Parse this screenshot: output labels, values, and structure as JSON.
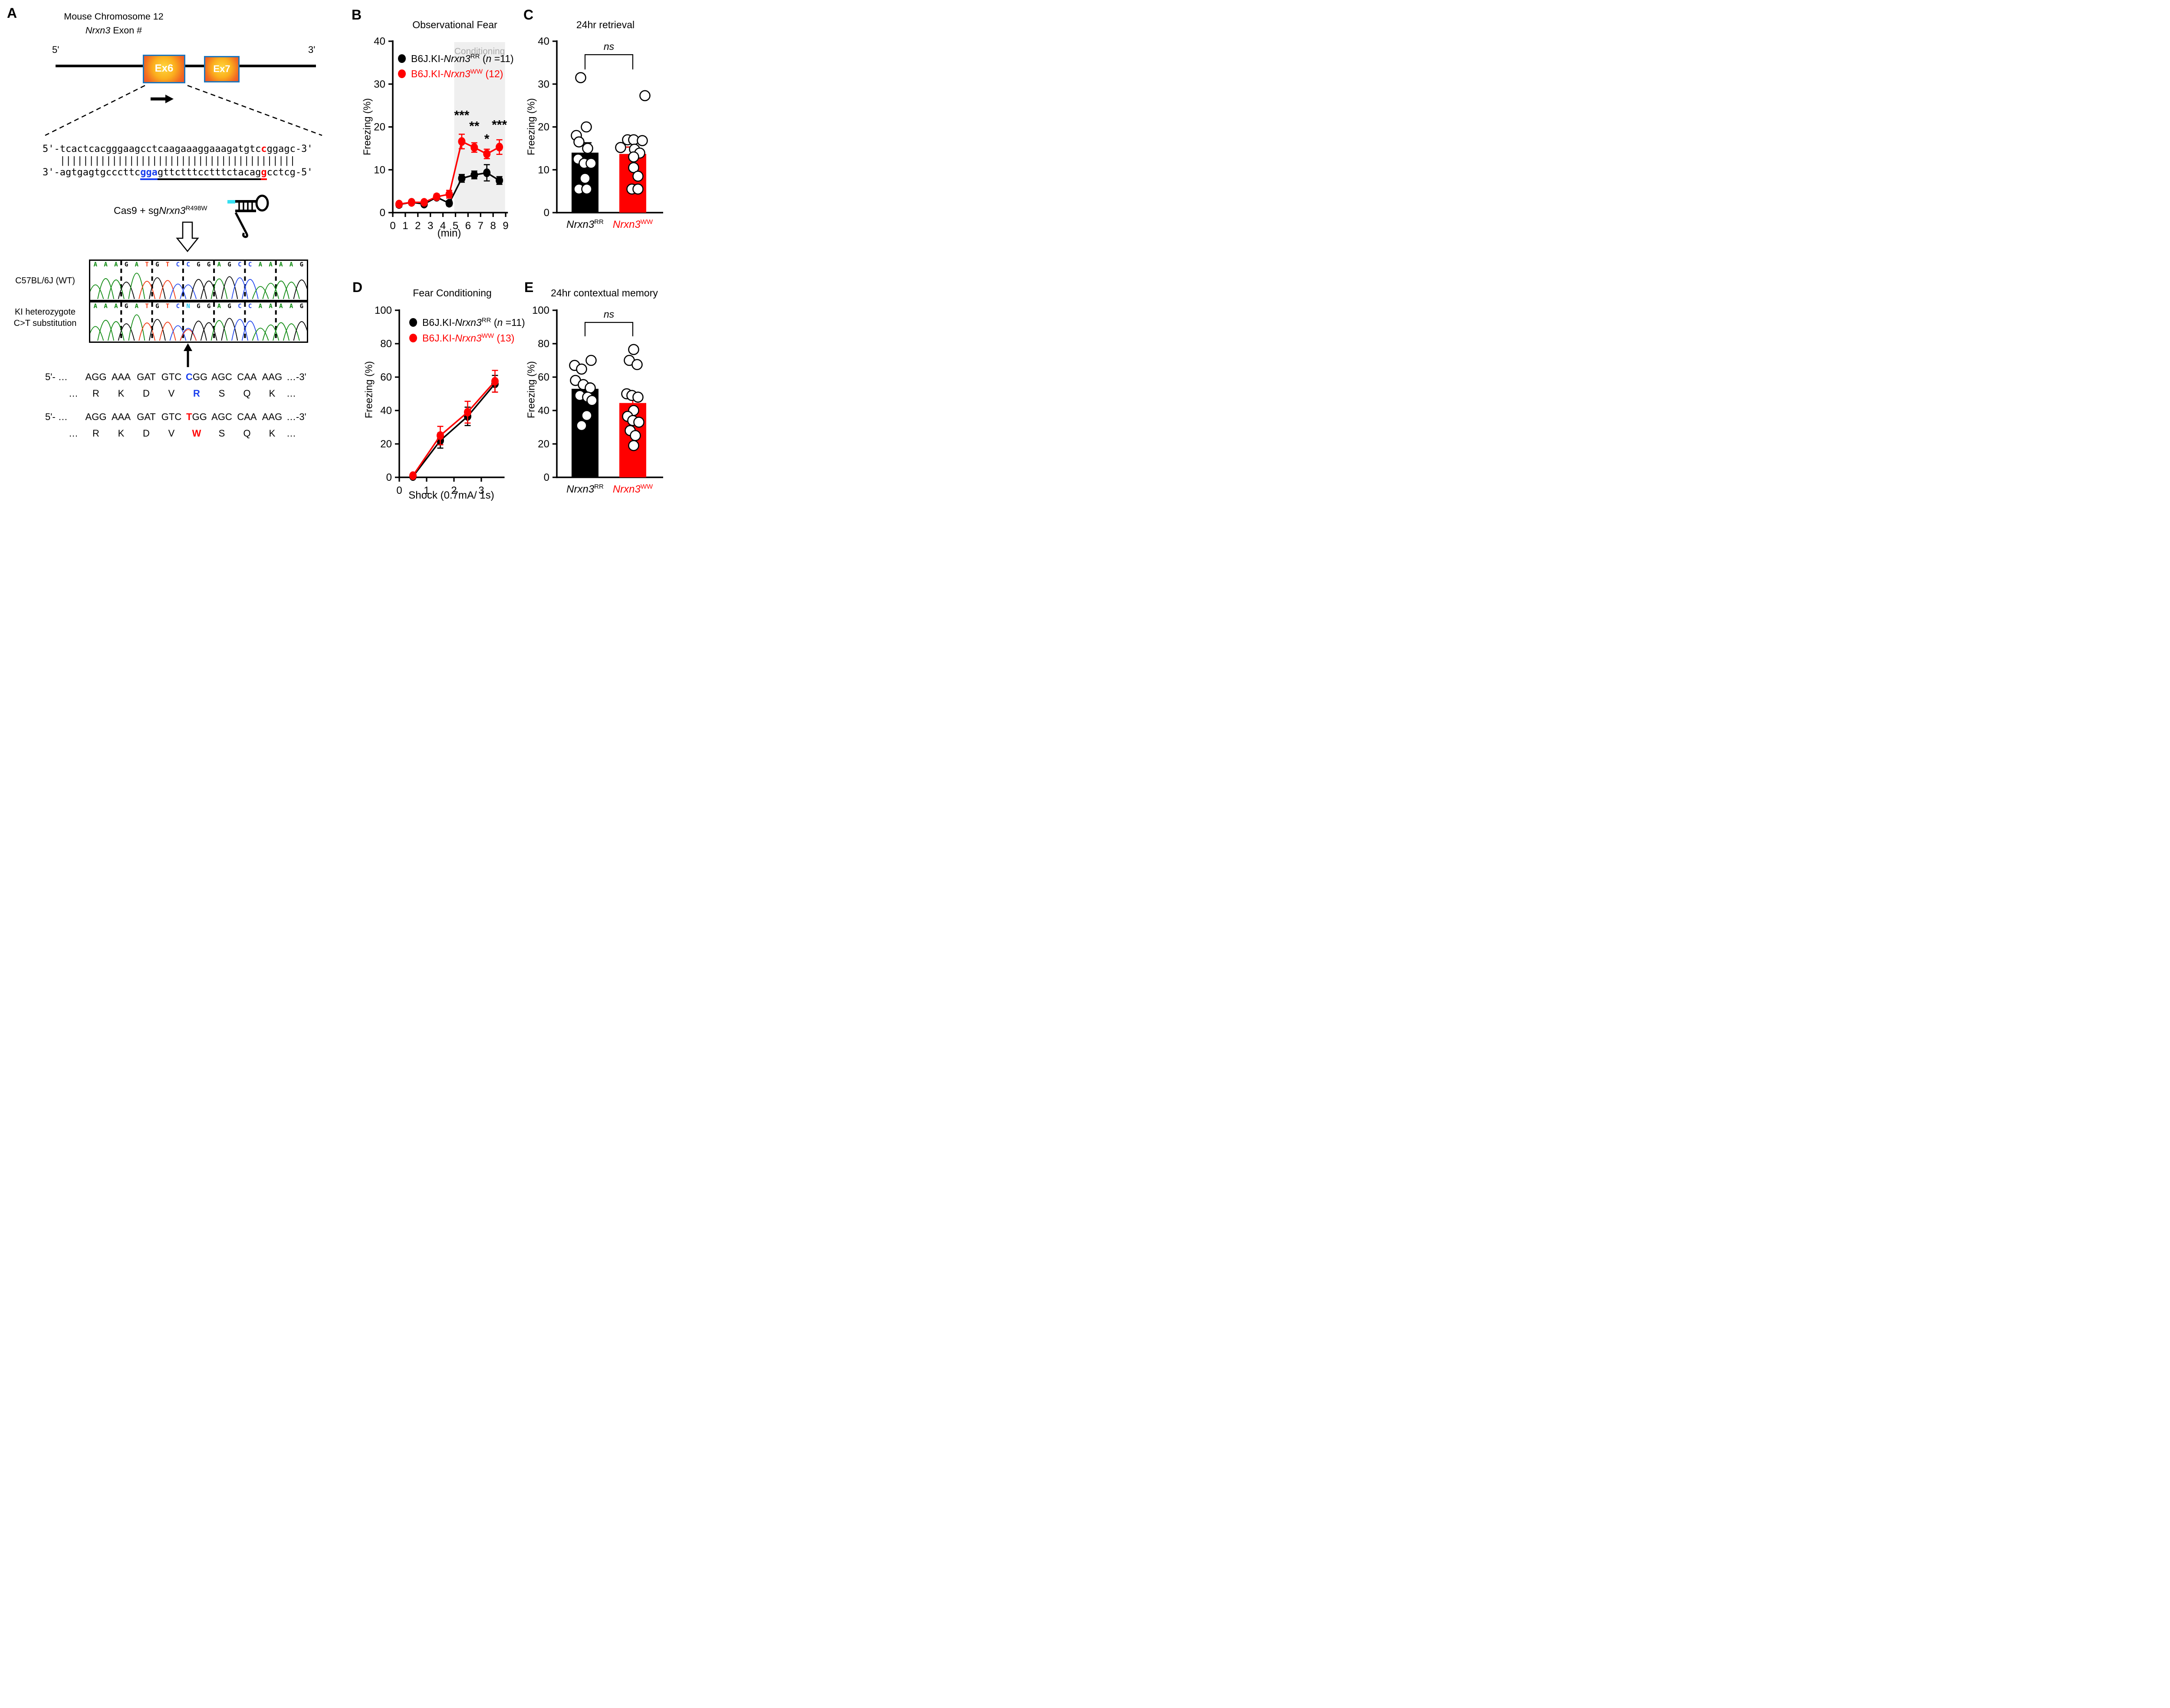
{
  "colors": {
    "red": "#FF0000",
    "black": "#000000",
    "blue": "#1A3FEE",
    "exon_border": "#1B75BC",
    "shade": "#efefef",
    "gray_text": "#ababab"
  },
  "panelA": {
    "label": "A",
    "title_line1": "Mouse Chromosome 12",
    "title_gene": "Nrxn3",
    "title_rest": " Exon #",
    "five_prime": "5'",
    "three_prime": "3'",
    "exon6": "Ex6",
    "exon7": "Ex7",
    "seq": {
      "top_prefix": "5'-",
      "top_a": "tcactcacgggaagcctcaagaaaggaaagatgtc",
      "top_mut": "c",
      "top_b": "ggagc",
      "top_suffix": "-3'",
      "pipes": "   |||||||||||||||||||||||||||||||||||||||||",
      "bot_prefix": "3'-",
      "bot_a": "agtgagtgcccttc",
      "bot_pam": "gga",
      "bot_b": "gttctttcctttctacag",
      "bot_mut": "g",
      "bot_c": "cctcg",
      "bot_suffix": "-5'"
    },
    "cas9": {
      "pre": "Cas9 + sg",
      "gene": "Nrxn3",
      "sup": "R498W"
    },
    "chromatogram": {
      "label_wt": "C57BL/6J (WT)",
      "label_ki1": "KI heterozygote",
      "label_ki2": "C>T substitution",
      "wt_bases": "AAAGATGTCCGGAGCCAAAAG",
      "ki_bases": "AAAGATGTCNGGAGCCAAAAG",
      "base_colors": {
        "A": "#0E8A10",
        "G": "#000000",
        "T": "#F23A12",
        "C": "#2348EE",
        "N": "#22C8F5"
      }
    },
    "codon_blocks": [
      {
        "prefix": "5'- …",
        "suffix": "…-3'",
        "res_pre": "…",
        "res_suf": "…",
        "codons": [
          "AGG",
          "AAA",
          "GAT",
          "GTC",
          "CGG",
          "AGC",
          "CAA",
          "AAG"
        ],
        "mut_codon": 4,
        "mut_char": 0,
        "color": "#1A3FEE",
        "residues": [
          "R",
          "K",
          "D",
          "V",
          "R",
          "S",
          "Q",
          "K"
        ],
        "mut_res": 4
      },
      {
        "prefix": "5'- …",
        "suffix": "…-3'",
        "res_pre": "…",
        "res_suf": "…",
        "codons": [
          "AGG",
          "AAA",
          "GAT",
          "GTC",
          "TGG",
          "AGC",
          "CAA",
          "AAG"
        ],
        "mut_codon": 4,
        "mut_char": 0,
        "color": "#FF0000",
        "residues": [
          "R",
          "K",
          "D",
          "V",
          "W",
          "S",
          "Q",
          "K"
        ],
        "mut_res": 4
      }
    ]
  },
  "chart_data": [
    {
      "id": "observational_fear",
      "panel": "B",
      "type": "line",
      "title": "Observational Fear",
      "xlabel": "(min)",
      "ylabel": "Freezing (%)",
      "x": [
        0.5,
        1.5,
        2.5,
        3.5,
        4.5,
        5.5,
        6.5,
        7.5,
        8.5
      ],
      "x_ticks": [
        0,
        1,
        2,
        3,
        4,
        5,
        6,
        7,
        8,
        9
      ],
      "y_ticks": [
        0,
        10,
        20,
        30,
        40
      ],
      "ylim": [
        0,
        40
      ],
      "shade": {
        "x0": 4.9,
        "x1": 8.95,
        "label": "Conditioning"
      },
      "series": [
        {
          "label_pre": "B6J.KI-",
          "gene": "Nrxn3",
          "sup": "RR",
          "tail_pre": " (",
          "tail_n": "n",
          "tail_post": " =11)",
          "color": "#000000",
          "values": [
            1.9,
            2.4,
            2.0,
            3.6,
            2.2,
            8.0,
            8.8,
            9.3,
            7.5
          ],
          "errors": [
            0.6,
            0.5,
            0.5,
            0.5,
            0.6,
            0.9,
            0.9,
            1.9,
            0.9
          ]
        },
        {
          "label_pre": "B6J.KI-",
          "gene": "Nrxn3",
          "sup": "WW",
          "tail_pre": " (12)",
          "tail_n": "",
          "tail_post": "",
          "color": "#FF0000",
          "values": [
            2.0,
            2.4,
            2.4,
            3.7,
            4.3,
            16.6,
            15.2,
            13.7,
            15.3
          ],
          "errors": [
            0.5,
            0.5,
            0.5,
            0.6,
            0.9,
            1.7,
            1.1,
            1.1,
            1.7
          ]
        }
      ],
      "significance": [
        {
          "x": 5.5,
          "y": 21.7,
          "label": "***"
        },
        {
          "x": 6.5,
          "y": 19.2,
          "label": "**"
        },
        {
          "x": 7.5,
          "y": 16.2,
          "label": "*"
        },
        {
          "x": 8.5,
          "y": 19.5,
          "label": "***"
        }
      ]
    },
    {
      "id": "retrieval_24hr",
      "panel": "C",
      "type": "bar",
      "title": "24hr retrieval",
      "ylabel": "Freezing (%)",
      "y_ticks": [
        0,
        10,
        20,
        30,
        40
      ],
      "ylim": [
        0,
        40
      ],
      "ns_label": "ns",
      "groups": [
        {
          "gene": "Nrxn3",
          "sup": "RR",
          "color": "#000000",
          "mean": 14.0,
          "sem": 2.3,
          "points": [
            [
              -10,
              31.5
            ],
            [
              3,
              20
            ],
            [
              -20,
              18
            ],
            [
              -14,
              16.5
            ],
            [
              6,
              15
            ],
            [
              -16,
              12.5
            ],
            [
              -2,
              11.5
            ],
            [
              14,
              11.5
            ],
            [
              0,
              8
            ],
            [
              -14,
              5.5
            ],
            [
              4,
              5.5
            ]
          ]
        },
        {
          "gene": "Nrxn3",
          "sup": "WW",
          "color": "#FF0000",
          "mean": 13.7,
          "sem": 1.6,
          "points": [
            [
              28,
              27.3
            ],
            [
              -12,
              17
            ],
            [
              2,
              17
            ],
            [
              22,
              16.8
            ],
            [
              -28,
              15.2
            ],
            [
              4,
              14.8
            ],
            [
              16,
              13.9
            ],
            [
              2,
              13
            ],
            [
              2,
              10.5
            ],
            [
              12,
              8.5
            ],
            [
              -2,
              5.5
            ],
            [
              12,
              5.5
            ]
          ]
        }
      ]
    },
    {
      "id": "fear_conditioning",
      "panel": "D",
      "type": "line",
      "title": "Fear Conditioning",
      "xlabel": "Shock (0.7mA/ 1s)",
      "ylabel": "Freezing (%)",
      "x": [
        0.5,
        1.5,
        2.5,
        3.5
      ],
      "x_ticks": [
        0,
        1,
        2,
        3
      ],
      "y_ticks": [
        0,
        20,
        40,
        60,
        80,
        100
      ],
      "ylim": [
        0,
        100
      ],
      "series": [
        {
          "label_pre": "B6J.KI-",
          "gene": "Nrxn3",
          "sup": "RR",
          "tail_pre": " (",
          "tail_n": "n",
          "tail_post": " =11)",
          "color": "#000000",
          "values": [
            0.5,
            22,
            36.5,
            56
          ],
          "errors": [
            0.5,
            4.5,
            5.5,
            5
          ]
        },
        {
          "label_pre": "B6J.KI-",
          "gene": "Nrxn3",
          "sup": "WW",
          "tail_pre": " (13)",
          "tail_n": "",
          "tail_post": "",
          "color": "#FF0000",
          "values": [
            1,
            25,
            39,
            57.5
          ],
          "errors": [
            0.5,
            5.5,
            6.5,
            6.5
          ]
        }
      ],
      "significance": []
    },
    {
      "id": "contextual_24hr",
      "panel": "E",
      "type": "bar",
      "title": "24hr contextual memory",
      "ylabel": "Freezing (%)",
      "y_ticks": [
        0,
        20,
        40,
        60,
        80,
        100
      ],
      "ylim": [
        0,
        100
      ],
      "ns_label": "ns",
      "groups": [
        {
          "gene": "Nrxn3",
          "sup": "RR",
          "color": "#000000",
          "mean": 53,
          "sem": 3.5,
          "points": [
            [
              14,
              70
            ],
            [
              -24,
              67
            ],
            [
              -8,
              64.8
            ],
            [
              -22,
              58
            ],
            [
              -4,
              55.5
            ],
            [
              12,
              53.5
            ],
            [
              -12,
              49
            ],
            [
              6,
              48
            ],
            [
              16,
              46
            ],
            [
              4,
              37
            ],
            [
              -8,
              31
            ]
          ]
        },
        {
          "gene": "Nrxn3",
          "sup": "WW",
          "color": "#FF0000",
          "mean": 44.5,
          "sem": 5,
          "points": [
            [
              2,
              76.5
            ],
            [
              -8,
              70
            ],
            [
              10,
              67.5
            ],
            [
              -14,
              50
            ],
            [
              -2,
              49
            ],
            [
              12,
              48
            ],
            [
              2,
              40
            ],
            [
              -12,
              36.5
            ],
            [
              0,
              34
            ],
            [
              14,
              33
            ],
            [
              -6,
              28
            ],
            [
              6,
              25
            ],
            [
              2,
              19
            ]
          ]
        }
      ]
    }
  ]
}
